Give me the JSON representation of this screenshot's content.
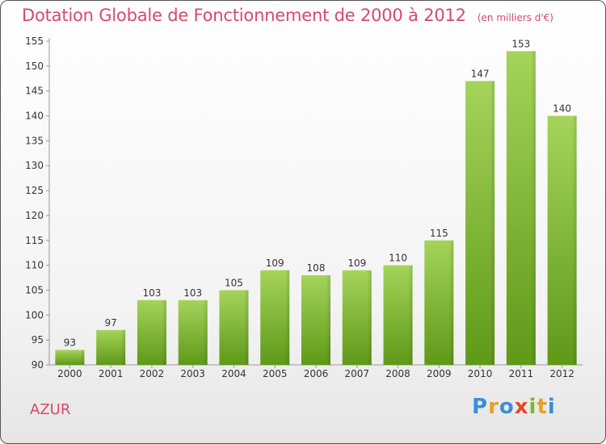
{
  "title": "Dotation Globale de Fonctionnement de 2000 à 2012",
  "unit": "(en milliers d'€)",
  "commune": "AZUR",
  "logo": {
    "letters": [
      "P",
      "r",
      "o",
      "x",
      "i",
      "t",
      "i"
    ],
    "colors": [
      "#3a8fd8",
      "#e6a126",
      "#3a8fd8",
      "#e2492e",
      "#7ab833",
      "#e6a126",
      "#3a8fd8"
    ]
  },
  "colors": {
    "title": "#d64a6a",
    "bar_light": "#a4d45a",
    "bar_dark": "#5f9918",
    "text": "#333333"
  },
  "chart_data": {
    "type": "bar",
    "categories": [
      "2000",
      "2001",
      "2002",
      "2003",
      "2004",
      "2005",
      "2006",
      "2007",
      "2008",
      "2009",
      "2010",
      "2011",
      "2012"
    ],
    "values": [
      93,
      97,
      103,
      103,
      105,
      109,
      108,
      109,
      110,
      115,
      147,
      153,
      140
    ],
    "ylim": [
      90,
      155
    ],
    "yticks": [
      90,
      95,
      100,
      105,
      110,
      115,
      120,
      125,
      130,
      135,
      140,
      145,
      150,
      155
    ],
    "grid": false
  }
}
